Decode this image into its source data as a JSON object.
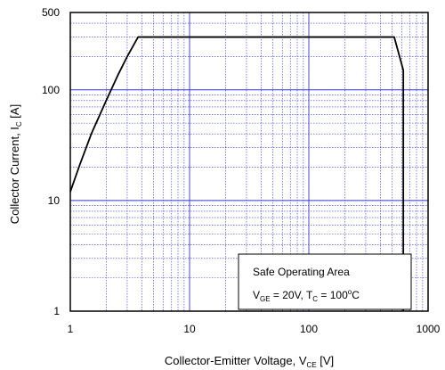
{
  "chart_data": {
    "type": "line",
    "title": "",
    "xscale": "log",
    "yscale": "log",
    "xlim": [
      1,
      1000
    ],
    "ylim": [
      1,
      500
    ],
    "x_ticks": [
      1,
      10,
      100,
      1000
    ],
    "x_tick_labels": [
      "1",
      "10",
      "100",
      "1000"
    ],
    "y_ticks": [
      1,
      10,
      100,
      500
    ],
    "y_tick_labels": [
      "1",
      "10",
      "100",
      "500"
    ],
    "grid": true,
    "xlabel": {
      "main": "Collector-Emitter  Voltage, V",
      "sub": "CE",
      "unit": " [V]"
    },
    "ylabel": {
      "main": "Collector Current, I",
      "sub": "C",
      "unit": " [A]"
    },
    "series": [
      {
        "x": [
          1,
          1.2,
          1.5,
          2,
          2.5,
          3,
          3.7,
          10,
          100,
          520,
          620,
          620
        ],
        "y": [
          12,
          21,
          40,
          80,
          135,
          200,
          300,
          300,
          300,
          300,
          150,
          1
        ]
      }
    ],
    "colors": {
      "grid": "#3333cc",
      "line": "#000000"
    },
    "annotation": {
      "line1": "Safe Operating Area",
      "line2_a": "V",
      "line2_a_sub": "GE",
      "line2_b": " = 20V, T",
      "line2_b_sub": "C",
      "line2_c": " = 100",
      "line2_c_sup": "o",
      "line2_d": "C"
    }
  }
}
